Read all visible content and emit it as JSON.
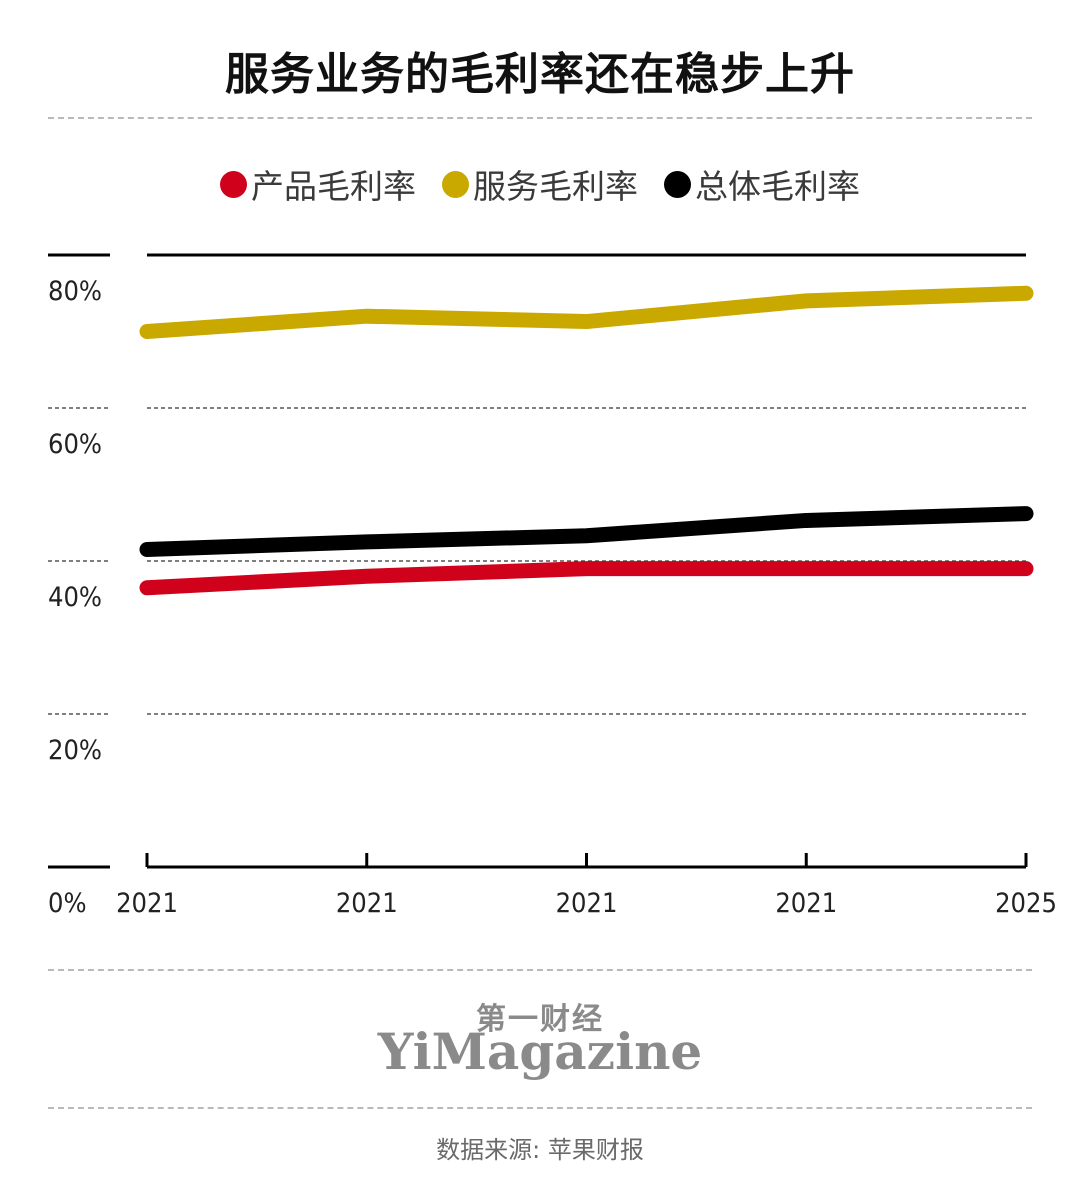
{
  "title": "服务业务的毛利率还在稳步上升",
  "chart_data": {
    "type": "line",
    "categories": [
      "2021",
      "2021",
      "2021",
      "2021",
      "2025"
    ],
    "series": [
      {
        "name": "产品毛利率",
        "color": "#d0021b",
        "values": [
          36.5,
          38.0,
          39.0,
          39.0,
          39.0
        ]
      },
      {
        "name": "服务毛利率",
        "color": "#c9a800",
        "values": [
          70.0,
          72.0,
          71.3,
          74.0,
          75.0
        ]
      },
      {
        "name": "总体毛利率",
        "color": "#000000",
        "values": [
          41.5,
          42.5,
          43.3,
          45.3,
          46.2
        ]
      }
    ],
    "yticks": [
      {
        "value": 0,
        "label": "0%"
      },
      {
        "value": 20,
        "label": "20%"
      },
      {
        "value": 40,
        "label": "40%"
      },
      {
        "value": 60,
        "label": "60%"
      },
      {
        "value": 80,
        "label": "80%"
      }
    ],
    "ylim": [
      0,
      80
    ],
    "legend_position": "top-center"
  },
  "logo": {
    "cn": "第一财经",
    "en": "YiMagazine"
  },
  "source": "数据来源: 苹果财报"
}
